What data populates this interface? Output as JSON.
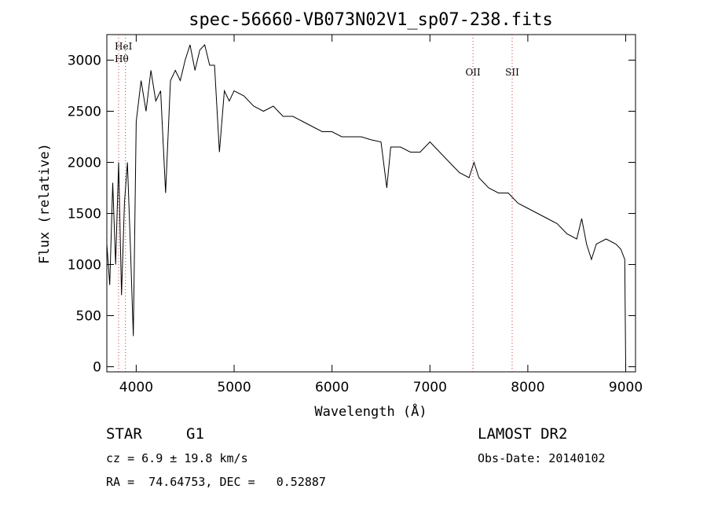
{
  "chart_data": {
    "type": "line",
    "title": "spec-56660-VB073N02V1_sp07-238.fits",
    "xlabel": "Wavelength (Å)",
    "ylabel": "Flux (relative)",
    "xlim": [
      3700,
      9100
    ],
    "ylim": [
      -50,
      3250
    ],
    "xticks": [
      4000,
      5000,
      6000,
      7000,
      8000,
      9000
    ],
    "yticks": [
      0,
      500,
      1000,
      1500,
      2000,
      2500,
      3000
    ],
    "grid": false,
    "line_color": "#000000",
    "marker_color": "#cc3333",
    "line_markers": [
      {
        "label": "HeI",
        "x": 3820
      },
      {
        "label": "Hθ",
        "x": 3890
      },
      {
        "label": "OII",
        "x": 7440
      },
      {
        "label": "SII",
        "x": 7840
      }
    ],
    "series": [
      {
        "x": [
          3700,
          3730,
          3760,
          3790,
          3820,
          3850,
          3880,
          3910,
          3940,
          3970,
          4000,
          4050,
          4100,
          4150,
          4200,
          4250,
          4300,
          4350,
          4400,
          4450,
          4500,
          4550,
          4600,
          4650,
          4700,
          4750,
          4800,
          4850,
          4900,
          4950,
          5000,
          5100,
          5200,
          5300,
          5400,
          5500,
          5600,
          5700,
          5800,
          5900,
          6000,
          6100,
          6200,
          6300,
          6400,
          6500,
          6560,
          6600,
          6700,
          6800,
          6900,
          7000,
          7100,
          7200,
          7300,
          7400,
          7450,
          7500,
          7600,
          7700,
          7800,
          7900,
          8000,
          8100,
          8200,
          8300,
          8400,
          8500,
          8550,
          8600,
          8650,
          8700,
          8800,
          8900,
          8950,
          8990,
          9000
        ],
        "y": [
          1200,
          800,
          1800,
          1000,
          2000,
          700,
          1600,
          2000,
          1200,
          300,
          2400,
          2800,
          2500,
          2900,
          2600,
          2700,
          1700,
          2800,
          2900,
          2800,
          3000,
          3150,
          2900,
          3100,
          3150,
          2950,
          2950,
          2100,
          2700,
          2600,
          2700,
          2650,
          2550,
          2500,
          2550,
          2450,
          2450,
          2400,
          2350,
          2300,
          2300,
          2250,
          2250,
          2250,
          2220,
          2200,
          1750,
          2150,
          2150,
          2100,
          2100,
          2200,
          2100,
          2000,
          1900,
          1850,
          2000,
          1850,
          1750,
          1700,
          1700,
          1600,
          1550,
          1500,
          1450,
          1400,
          1300,
          1250,
          1450,
          1200,
          1050,
          1200,
          1250,
          1200,
          1150,
          1050,
          0
        ]
      }
    ]
  },
  "info": {
    "class_label": "STAR",
    "subclass": "G1",
    "redshift": "cz = 6.9 ± 19.8 km/s",
    "coords": "RA =  74.64753, DEC =   0.52887",
    "survey": "LAMOST DR2",
    "obs_date": "Obs-Date: 20140102"
  }
}
